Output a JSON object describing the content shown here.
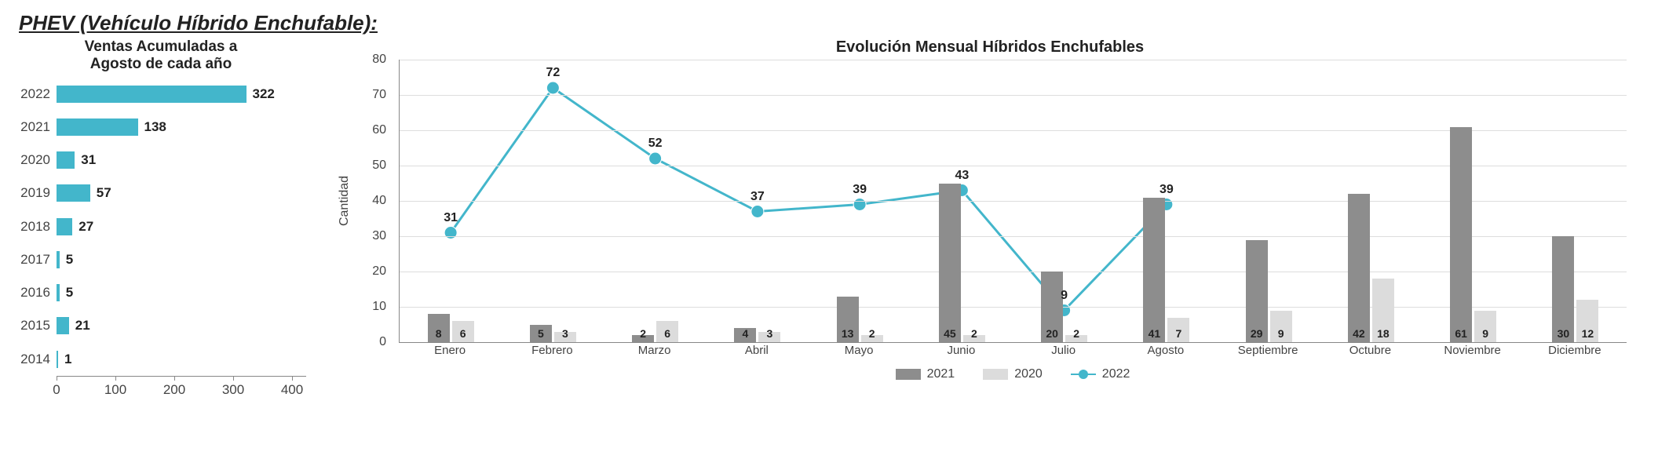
{
  "header": "PHEV (Vehículo Híbrido Enchufable):",
  "left_chart": {
    "type": "bar-horizontal",
    "title_line1": "Ventas Acumuladas a",
    "title_line2": "Agosto de cada año",
    "bar_color": "#43b6cb",
    "label_color": "#222222",
    "axis_color": "#888888",
    "font_size_labels": 17,
    "categories": [
      "2022",
      "2021",
      "2020",
      "2019",
      "2018",
      "2017",
      "2016",
      "2015",
      "2014"
    ],
    "values": [
      322,
      138,
      31,
      57,
      27,
      5,
      5,
      21,
      1
    ],
    "xlim": [
      0,
      400
    ],
    "xticks": [
      0,
      100,
      200,
      300,
      400
    ]
  },
  "right_chart": {
    "type": "bar+line",
    "title": "Evolución Mensual Híbridos Enchufables",
    "y_label": "Cantidad",
    "months": [
      "Enero",
      "Febrero",
      "Marzo",
      "Abril",
      "Mayo",
      "Junio",
      "Julio",
      "Agosto",
      "Septiembre",
      "Octubre",
      "Noviembre",
      "Diciembre"
    ],
    "ylim": [
      0,
      80
    ],
    "yticks": [
      0,
      10,
      20,
      30,
      40,
      50,
      60,
      70,
      80
    ],
    "grid_color": "#dddddd",
    "axis_color": "#888888",
    "series": {
      "bar_2021": {
        "label": "2021",
        "color": "#8d8d8d",
        "values": [
          8,
          5,
          2,
          4,
          13,
          45,
          20,
          41,
          29,
          42,
          61,
          30
        ]
      },
      "bar_2020": {
        "label": "2020",
        "color": "#dcdcdc",
        "values": [
          6,
          3,
          6,
          3,
          2,
          2,
          2,
          7,
          9,
          18,
          9,
          12
        ]
      },
      "line_2022": {
        "label": "2022",
        "color": "#43b6cb",
        "values": [
          31,
          72,
          52,
          37,
          39,
          43,
          9,
          39
        ],
        "marker_radius": 8,
        "line_width": 3
      }
    },
    "legend_order": [
      "bar_2021",
      "bar_2020",
      "line_2022"
    ]
  }
}
